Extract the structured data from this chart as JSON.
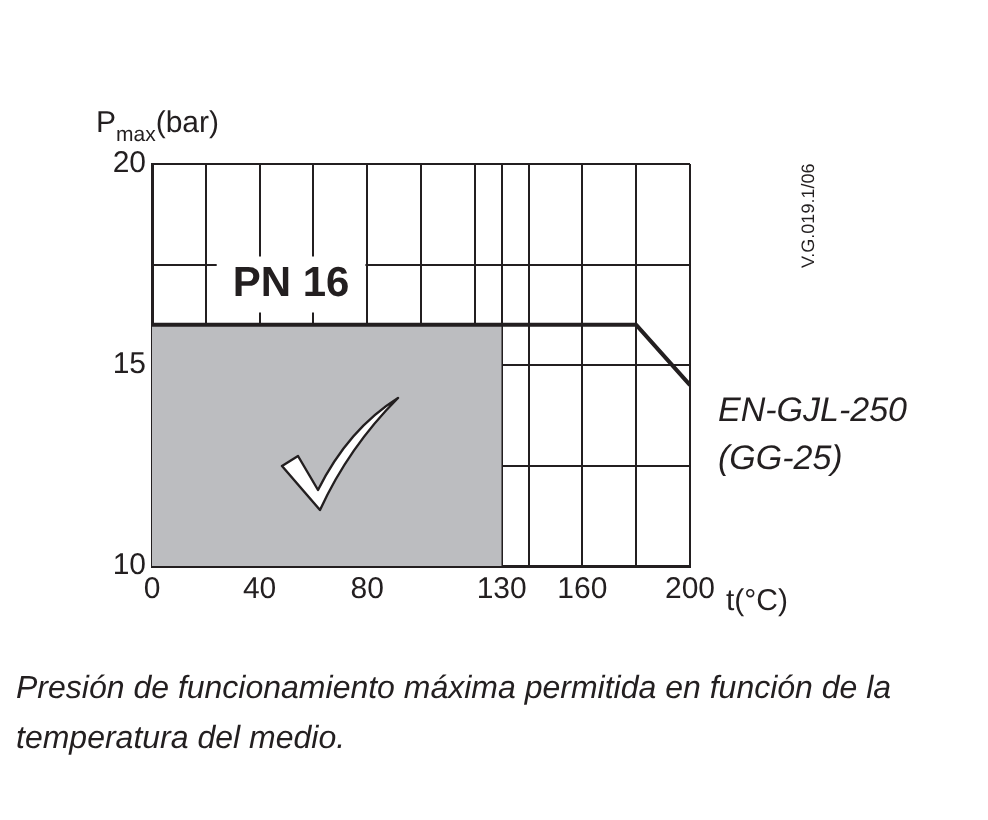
{
  "chart_data": {
    "type": "line",
    "xlabel": "t(°C)",
    "ylabel": "P$_{max}$(bar)",
    "xlim": [
      0,
      200
    ],
    "ylim": [
      10,
      20
    ],
    "xticks": [
      0,
      {
        "value": 20,
        "label": null
      },
      40,
      {
        "value": 60,
        "label": null
      },
      80,
      {
        "value": 100,
        "label": null
      },
      {
        "value": 120,
        "label": null
      },
      130,
      {
        "value": 140,
        "label": null
      },
      160,
      {
        "value": 180,
        "label": null
      },
      200
    ],
    "yticks": [
      10,
      {
        "value": 12.5,
        "label": null
      },
      15,
      {
        "value": 17.5,
        "label": null
      },
      20
    ],
    "series": [
      {
        "type": "area",
        "color": "#bcbdc0",
        "x": [
          0,
          130
        ],
        "values": [
          16,
          16
        ]
      },
      {
        "name": "EN-GJL-250 (GG-25)",
        "color": "#231f20",
        "x": [
          0,
          180,
          200
        ],
        "values": [
          16,
          16,
          14.5
        ]
      }
    ],
    "annotations": [
      "PN 16",
      "V.G.019.1/06",
      "Presión de funcionamiento máxima permitida en función de la temperatura del medio."
    ],
    "grid": true,
    "legend": false
  }
}
